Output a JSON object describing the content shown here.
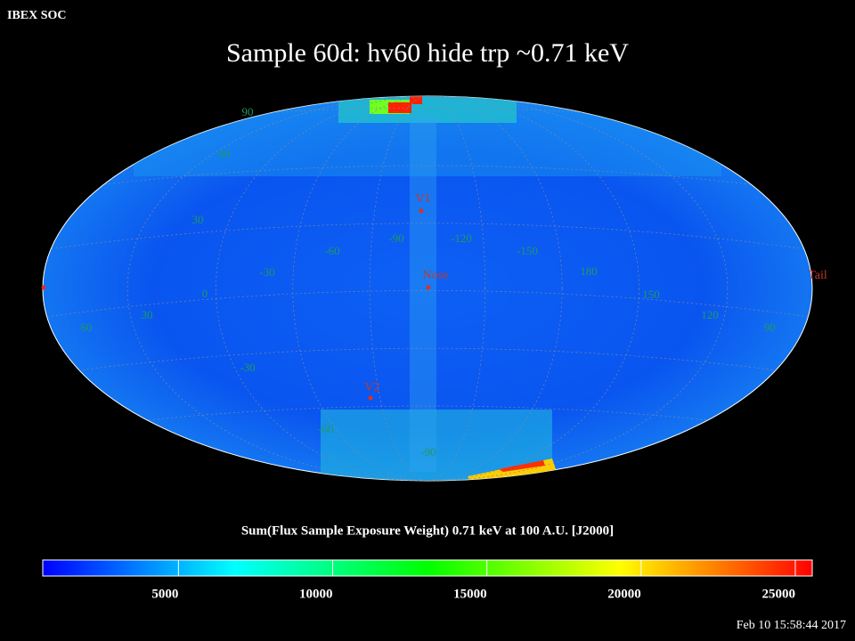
{
  "header": {
    "org": "IBEX SOC",
    "timestamp": "Feb 10 15:58:44 2017"
  },
  "chart_data": {
    "type": "skymap",
    "title": "Sample 60d: hv60 hide trp ~0.71 keV",
    "colorbar": {
      "label": "Sum(Flux Sample Exposure Weight)  0.71 keV at 100 A.U. [J2000]",
      "lim": [
        600,
        25550
      ],
      "ticks": [
        5000,
        10000,
        15000,
        20000,
        25000
      ],
      "colormap": [
        "#0000ff",
        "#00ffff",
        "#00ff00",
        "#ffff00",
        "#ff0000"
      ]
    },
    "lat_labels": [
      "90",
      "60",
      "30",
      "0",
      "-30",
      "-60",
      "-90"
    ],
    "lon_labels": [
      "60",
      "30",
      "-30",
      "-60",
      "-90",
      "-120",
      "-150",
      "180",
      "150",
      "120",
      "90"
    ],
    "markers": [
      "V1",
      "Nose",
      "V2",
      "Tail"
    ]
  }
}
